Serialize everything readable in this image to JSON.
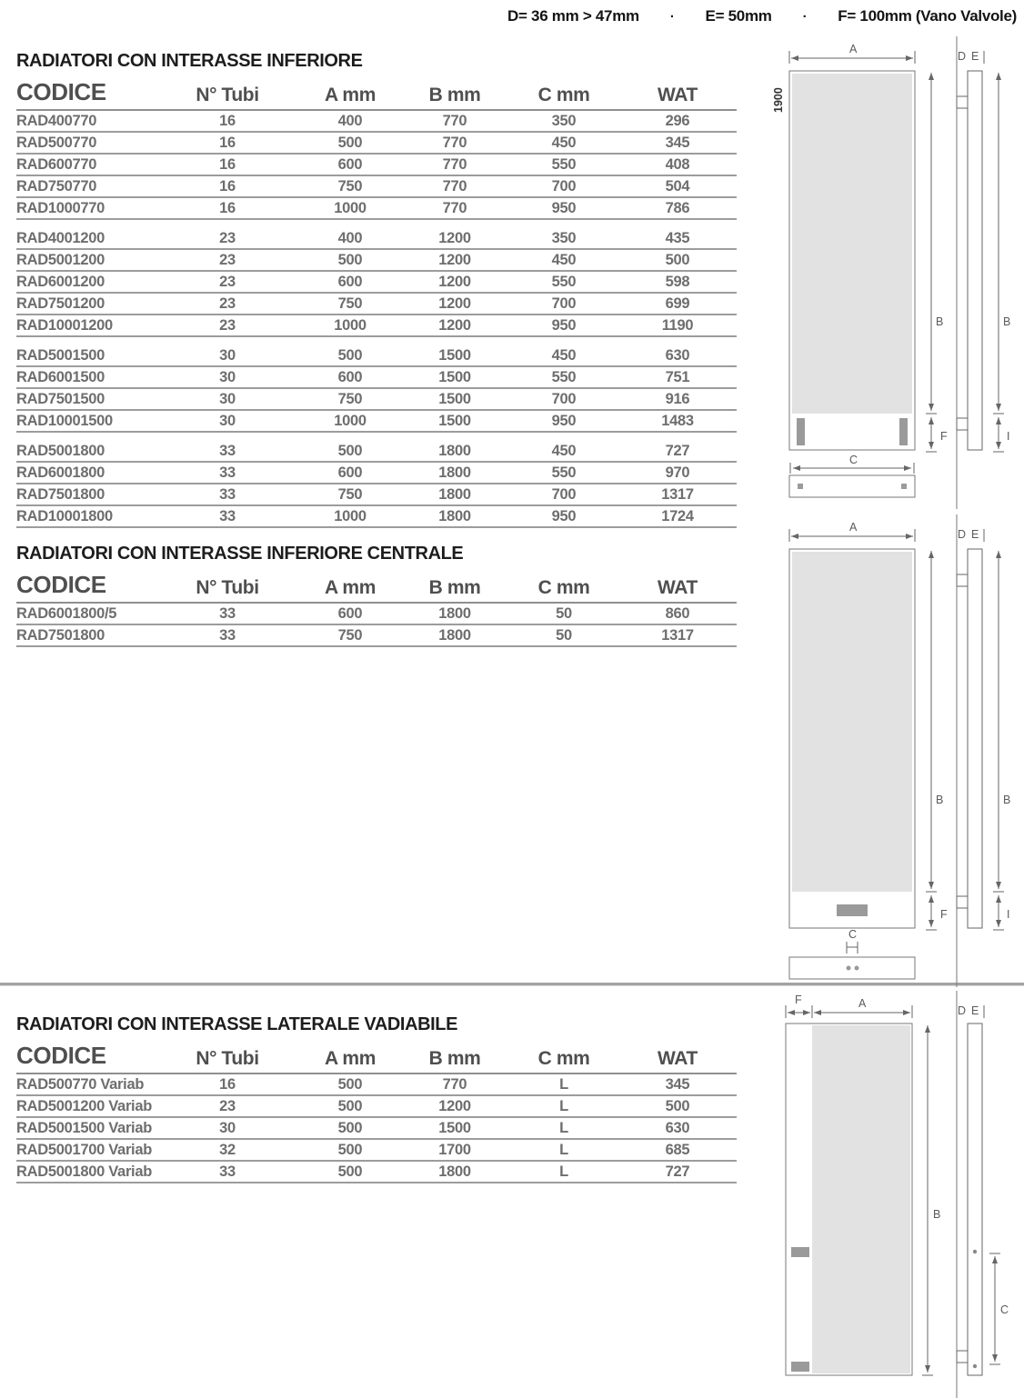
{
  "page": {
    "top_note": {
      "d": "D= 36 mm > 47mm",
      "separator": "·",
      "e": "E= 50mm",
      "f": "F= 100mm (Vano Valvole)"
    }
  },
  "columns": [
    "CODICE",
    "N° Tubi",
    "A mm",
    "B mm",
    "C mm",
    "WAT"
  ],
  "sections": [
    {
      "title": "RADIATORI CON INTERASSE INFERIORE",
      "groups": [
        {
          "rows": [
            [
              "RAD400770",
              "16",
              "400",
              "770",
              "350",
              "296"
            ],
            [
              "RAD500770",
              "16",
              "500",
              "770",
              "450",
              "345"
            ],
            [
              "RAD600770",
              "16",
              "600",
              "770",
              "550",
              "408"
            ],
            [
              "RAD750770",
              "16",
              "750",
              "770",
              "700",
              "504"
            ],
            [
              "RAD1000770",
              "16",
              "1000",
              "770",
              "950",
              "786"
            ]
          ]
        },
        {
          "rows": [
            [
              "RAD4001200",
              "23",
              "400",
              "1200",
              "350",
              "435"
            ],
            [
              "RAD5001200",
              "23",
              "500",
              "1200",
              "450",
              "500"
            ],
            [
              "RAD6001200",
              "23",
              "600",
              "1200",
              "550",
              "598"
            ],
            [
              "RAD7501200",
              "23",
              "750",
              "1200",
              "700",
              "699"
            ],
            [
              "RAD10001200",
              "23",
              "1000",
              "1200",
              "950",
              "1190"
            ]
          ]
        },
        {
          "rows": [
            [
              "RAD5001500",
              "30",
              "500",
              "1500",
              "450",
              "630"
            ],
            [
              "RAD6001500",
              "30",
              "600",
              "1500",
              "550",
              "751"
            ],
            [
              "RAD7501500",
              "30",
              "750",
              "1500",
              "700",
              "916"
            ],
            [
              "RAD10001500",
              "30",
              "1000",
              "1500",
              "950",
              "1483"
            ]
          ]
        },
        {
          "rows": [
            [
              "RAD5001800",
              "33",
              "500",
              "1800",
              "450",
              "727"
            ],
            [
              "RAD6001800",
              "33",
              "600",
              "1800",
              "550",
              "970"
            ],
            [
              "RAD7501800",
              "33",
              "750",
              "1800",
              "700",
              "1317"
            ],
            [
              "RAD10001800",
              "33",
              "1000",
              "1800",
              "950",
              "1724"
            ]
          ]
        }
      ]
    },
    {
      "title": "RADIATORI CON INTERASSE INFERIORE CENTRALE",
      "groups": [
        {
          "rows": [
            [
              "RAD6001800/5",
              "33",
              "600",
              "1800",
              "50",
              "860"
            ],
            [
              "RAD7501800",
              "33",
              "750",
              "1800",
              "50",
              "1317"
            ]
          ]
        }
      ]
    },
    {
      "title": "RADIATORI CON INTERASSE LATERALE VADIABILE",
      "groups": [
        {
          "rows": [
            [
              "RAD500770 Variab",
              "16",
              "500",
              "770",
              "L",
              "345"
            ],
            [
              "RAD5001200 Variab",
              "23",
              "500",
              "1200",
              "L",
              "500"
            ],
            [
              "RAD5001500 Variab",
              "30",
              "500",
              "1500",
              "L",
              "630"
            ],
            [
              "RAD5001700 Variab",
              "32",
              "500",
              "1700",
              "L",
              "685"
            ],
            [
              "RAD5001800 Variab",
              "33",
              "500",
              "1800",
              "L",
              "727"
            ]
          ]
        }
      ]
    }
  ],
  "diagram_labels": {
    "a": "A",
    "b": "B",
    "c": "C",
    "d": "D",
    "e": "E",
    "f": "F",
    "i": "I",
    "height": "1900"
  },
  "colors": {
    "title_text": "#1d1d1d",
    "header_text": "#4f4f4f",
    "row_text": "#6e6e6e",
    "table_line": "#9c9c9c",
    "panel_fill": "#e2e2e2",
    "connector_fill": "#9a9a9a",
    "diagram_line": "#6a6a6a"
  }
}
